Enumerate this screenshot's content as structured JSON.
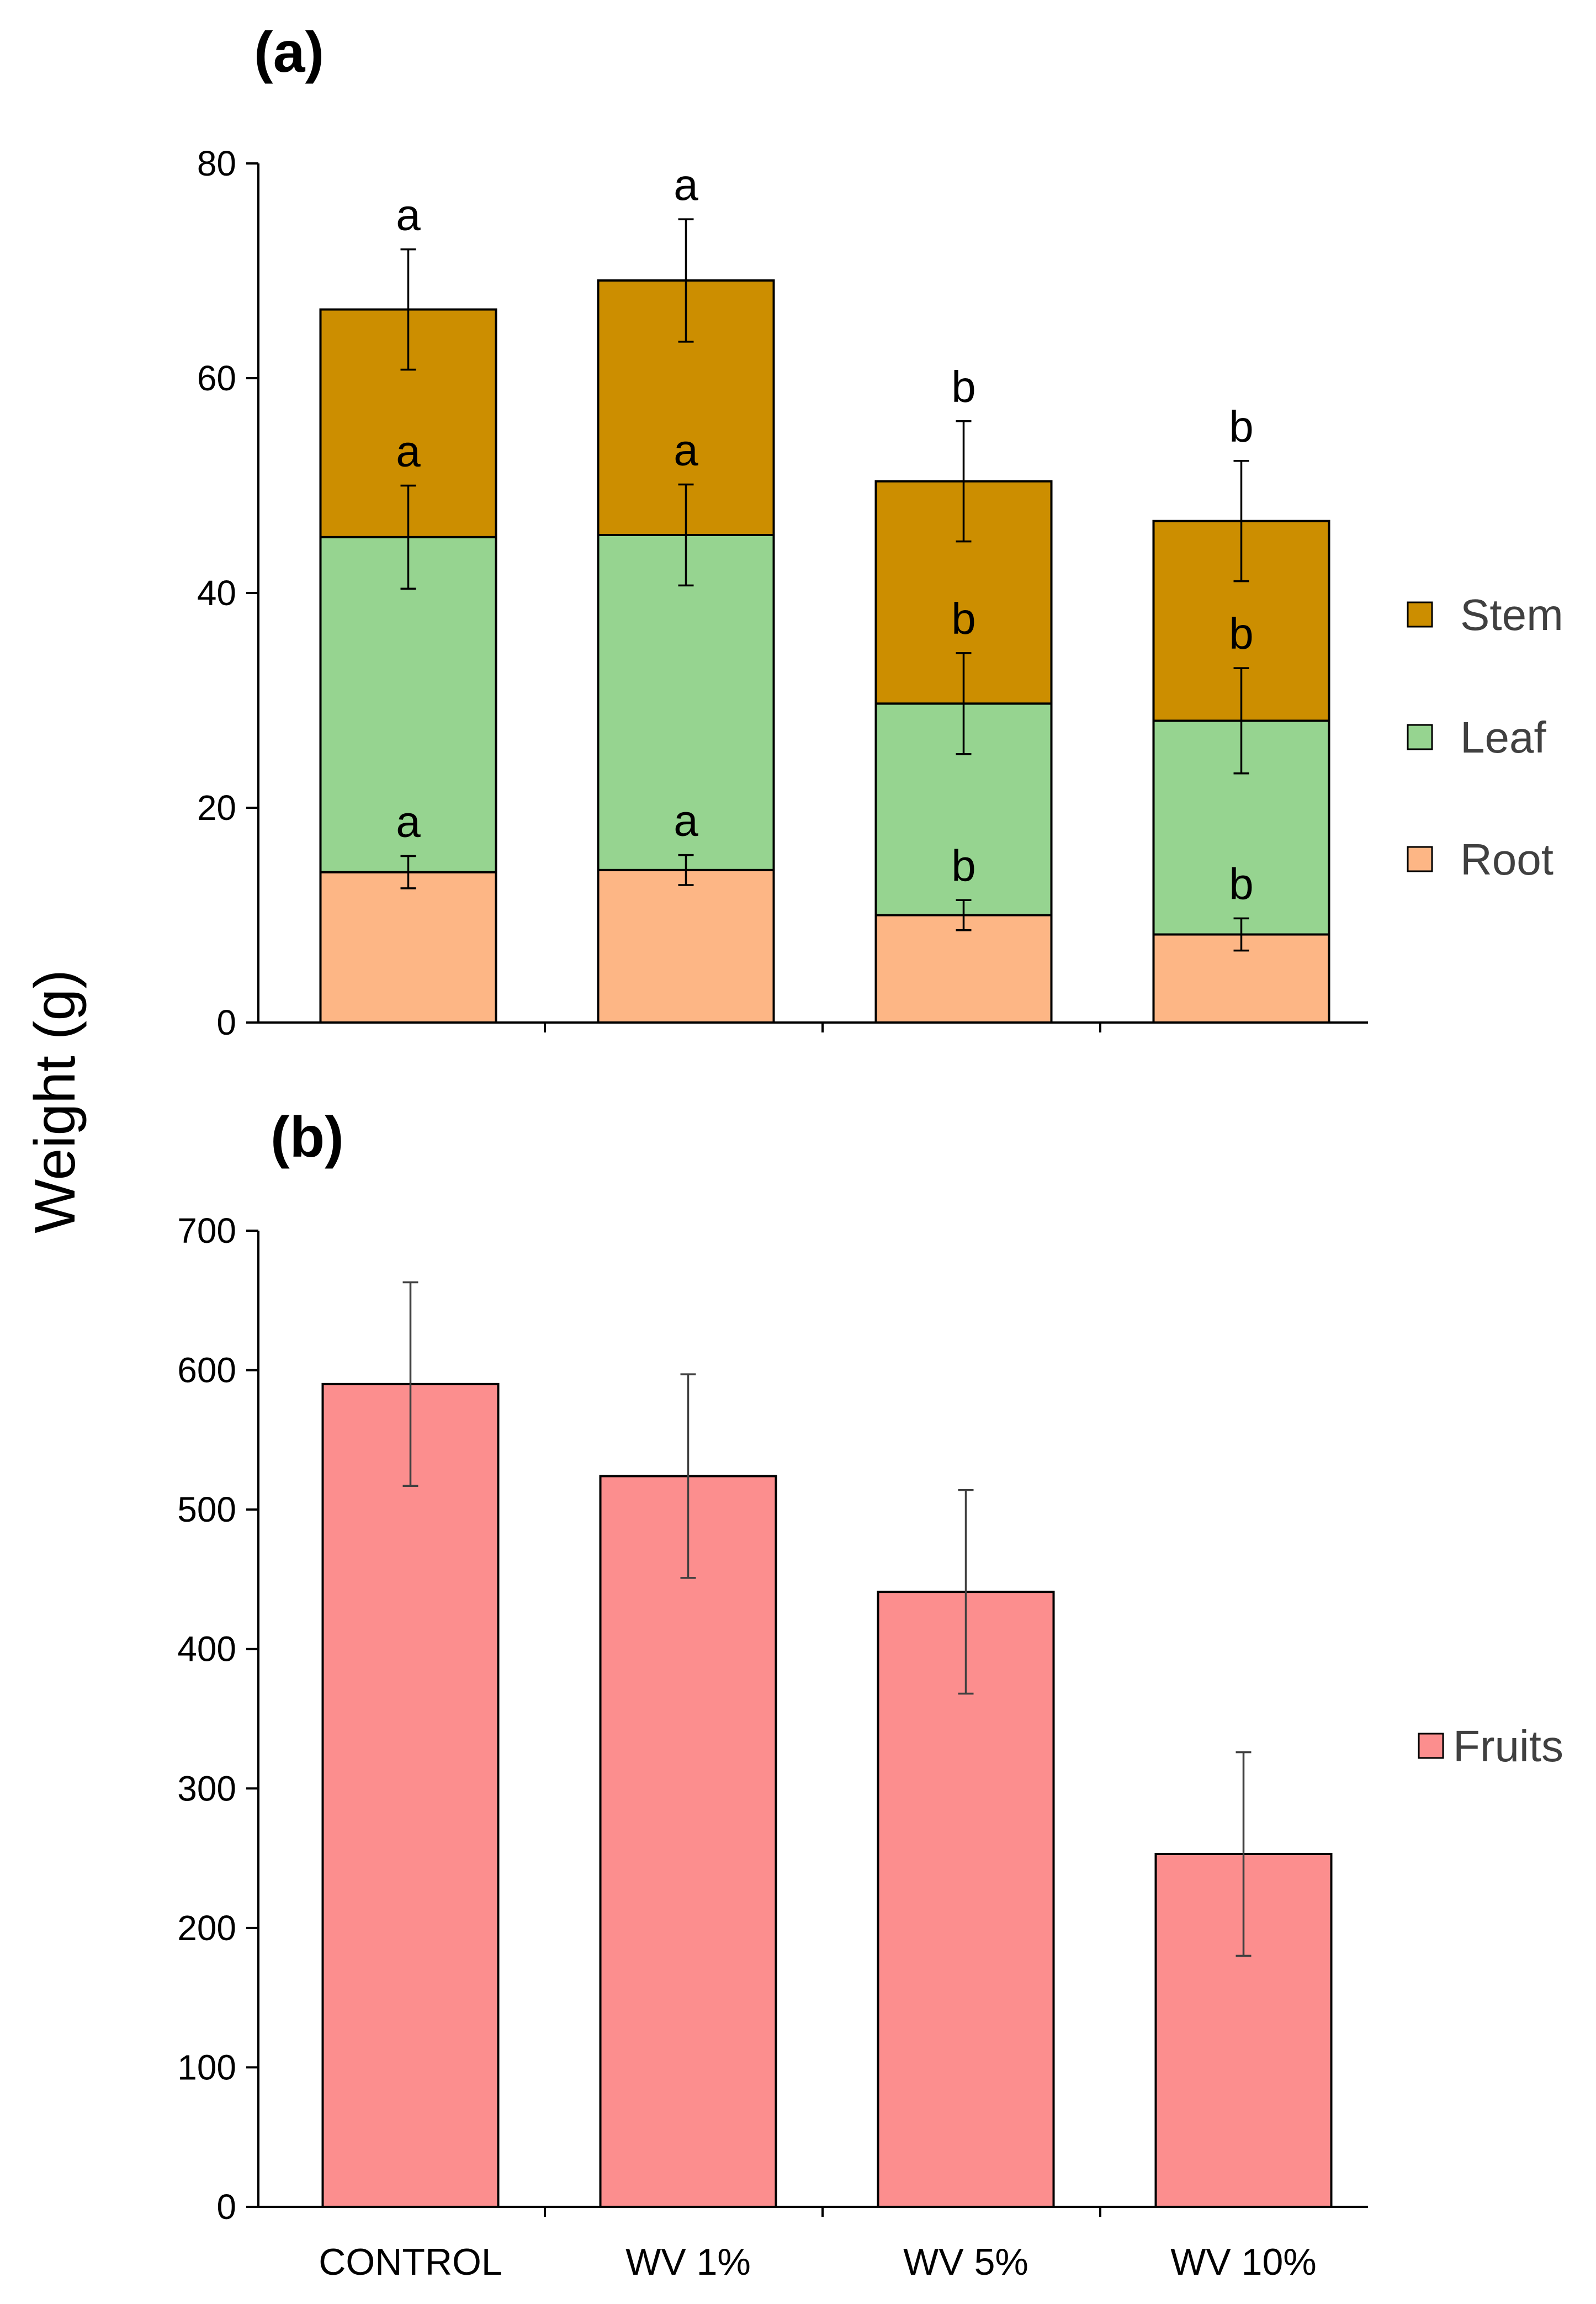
{
  "ylabel": "Weight (g)",
  "chart_data": [
    {
      "type": "bar",
      "stacked": true,
      "panel_label": "(a)",
      "title": "",
      "xlabel": "",
      "ylabel": "Weight (g)",
      "ylim": [
        0,
        80
      ],
      "yticks": [
        0,
        20,
        40,
        60,
        80
      ],
      "categories": [
        "CONTROL",
        "WV 1%",
        "WV 5%",
        "WV 10%"
      ],
      "grid": false,
      "legend_position": "right",
      "legend": [
        "Stem",
        "Leaf",
        "Root"
      ],
      "series": [
        {
          "name": "Root",
          "color": "#FDB685",
          "values": [
            14.0,
            14.2,
            10.0,
            8.2
          ],
          "errors": [
            1.5,
            1.4,
            1.4,
            1.5
          ],
          "letters": [
            "a",
            "a",
            "b",
            "b"
          ]
        },
        {
          "name": "Leaf",
          "color": "#96D490",
          "values": [
            31.2,
            31.2,
            19.7,
            19.9
          ],
          "errors": [
            4.8,
            4.7,
            4.7,
            4.9
          ],
          "letters": [
            "a",
            "a",
            "b",
            "b"
          ]
        },
        {
          "name": "Stem",
          "color": "#CC8E00",
          "values": [
            21.2,
            23.7,
            20.7,
            18.6
          ],
          "errors": [
            5.6,
            5.7,
            5.6,
            5.6
          ],
          "letters": [
            "a",
            "a",
            "b",
            "b"
          ]
        }
      ]
    },
    {
      "type": "bar",
      "stacked": false,
      "panel_label": "(b)",
      "title": "",
      "xlabel": "",
      "ylabel": "Weight (g)",
      "ylim": [
        0,
        700
      ],
      "yticks": [
        0,
        100,
        200,
        300,
        400,
        500,
        600,
        700
      ],
      "categories": [
        "CONTROL",
        "WV 1%",
        "WV 5%",
        "WV 10%"
      ],
      "grid": false,
      "legend_position": "right",
      "legend": [
        "Fruits"
      ],
      "series": [
        {
          "name": "Fruits",
          "color": "#FC8E8E",
          "values": [
            590,
            524,
            441,
            253
          ],
          "errors": [
            73,
            73,
            73,
            73
          ]
        }
      ]
    }
  ]
}
